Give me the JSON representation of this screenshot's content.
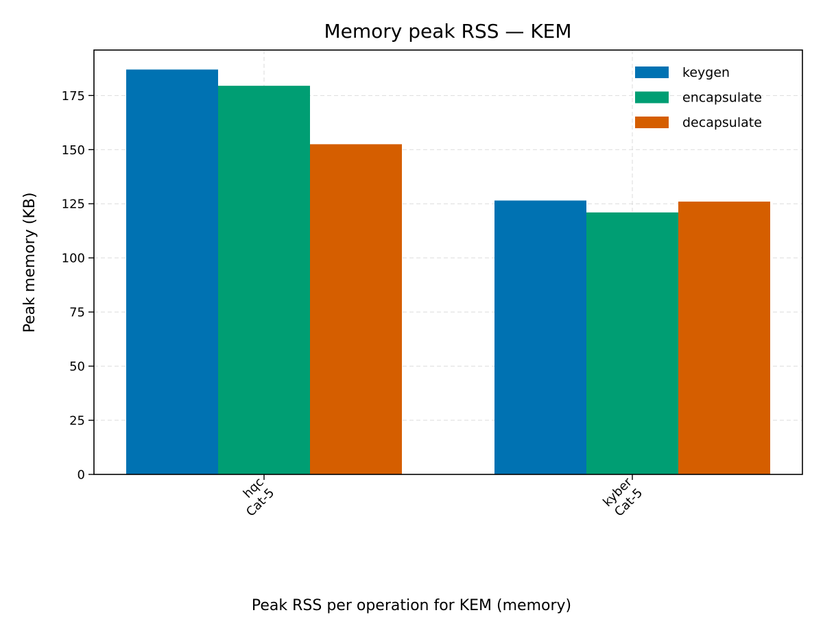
{
  "chart_data": {
    "type": "bar",
    "title": "Memory peak RSS — KEM",
    "ylabel": "Peak memory (KB)",
    "caption": "Peak RSS per operation for KEM (memory)",
    "categories": [
      [
        "hqc",
        "Cat-5"
      ],
      [
        "kyber",
        "Cat-5"
      ]
    ],
    "series": [
      {
        "name": "keygen",
        "color": "#0072B2",
        "values": [
          187,
          126.5
        ]
      },
      {
        "name": "encapsulate",
        "color": "#009E73",
        "values": [
          179.5,
          121
        ]
      },
      {
        "name": "decapsulate",
        "color": "#D55E00",
        "values": [
          152.5,
          126
        ]
      }
    ],
    "ylim": [
      0,
      196
    ],
    "yticks": [
      "0",
      "25",
      "50",
      "75",
      "100",
      "125",
      "150",
      "175"
    ],
    "grid": true,
    "legend_position": "top-right"
  }
}
